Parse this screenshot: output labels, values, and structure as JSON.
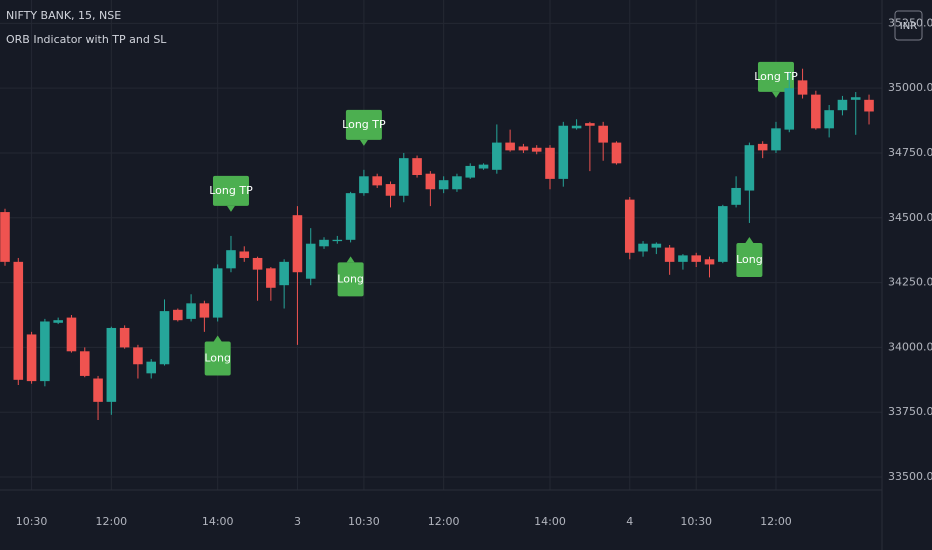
{
  "chart_data": {
    "type": "candlestick",
    "title": "NIFTY BANK, 15, NSE",
    "subtitle": "ORB Indicator with TP and SL",
    "currency": "INR",
    "up_color": "#26a69a",
    "down_color": "#ef5350",
    "signal_color": "#4caf50",
    "grid": true,
    "categories": [
      null,
      null,
      "10:30",
      null,
      null,
      null,
      null,
      null,
      "12:00",
      null,
      null,
      null,
      null,
      null,
      null,
      null,
      "14:00",
      null,
      null,
      null,
      null,
      null,
      "3",
      null,
      null,
      null,
      null,
      "10:30",
      null,
      null,
      null,
      null,
      null,
      "12:00",
      null,
      null,
      null,
      null,
      null,
      null,
      null,
      "14:00",
      null,
      null,
      null,
      null,
      null,
      "4",
      null,
      null,
      null,
      null,
      "10:30",
      null,
      null,
      null,
      null,
      null,
      "12:00",
      null,
      null,
      null,
      null,
      null,
      null,
      null
    ],
    "open": [
      34522,
      34330,
      34050,
      33870,
      34095,
      34115,
      33985,
      33880,
      33790,
      34075,
      34000,
      33900,
      33935,
      34145,
      34110,
      34170,
      34115,
      34305,
      34370,
      34345,
      34305,
      34240,
      34510,
      34265,
      34390,
      34410,
      34415,
      34595,
      34660,
      34630,
      34585,
      34730,
      34670,
      34610,
      34610,
      34655,
      34690,
      34685,
      34790,
      34775,
      34770,
      34770,
      34650,
      34845,
      34865,
      34855,
      34790,
      34570,
      34370,
      34385,
      34385,
      34330,
      34355,
      34340,
      34330,
      34550,
      34605,
      34785,
      34760,
      34840,
      35030,
      34975,
      34845,
      34915,
      34955,
      34955
    ],
    "high": [
      34535,
      34345,
      34060,
      34110,
      34115,
      34125,
      34000,
      33890,
      34080,
      34085,
      34010,
      33955,
      34185,
      34150,
      34205,
      34180,
      34320,
      34430,
      34390,
      34350,
      34310,
      34340,
      34545,
      34460,
      34425,
      34430,
      34600,
      34685,
      34670,
      34640,
      34750,
      34740,
      34680,
      34660,
      34670,
      34710,
      34710,
      34860,
      34840,
      34785,
      34780,
      34780,
      34870,
      34880,
      34870,
      34870,
      34795,
      34580,
      34410,
      34405,
      34395,
      34360,
      34365,
      34350,
      34550,
      34660,
      34790,
      34795,
      34870,
      35060,
      35075,
      34990,
      34935,
      34970,
      34985,
      34975
    ],
    "low": [
      34315,
      33855,
      33860,
      33850,
      34090,
      33980,
      33885,
      33720,
      33740,
      33995,
      33880,
      33880,
      33930,
      34100,
      34100,
      34060,
      34100,
      34290,
      34330,
      34180,
      34180,
      34150,
      34010,
      34240,
      34380,
      34400,
      34405,
      34585,
      34615,
      34540,
      34560,
      34655,
      34545,
      34595,
      34600,
      34650,
      34685,
      34670,
      34755,
      34750,
      34745,
      34610,
      34620,
      34840,
      34680,
      34720,
      34705,
      34340,
      34350,
      34360,
      34280,
      34300,
      34310,
      34270,
      34325,
      34540,
      34480,
      34730,
      34750,
      34830,
      34960,
      34840,
      34810,
      34895,
      34820,
      34860
    ],
    "close": [
      34330,
      33875,
      33870,
      34100,
      34105,
      33985,
      33890,
      33790,
      34075,
      34000,
      33935,
      33945,
      34140,
      34105,
      34170,
      34115,
      34305,
      34375,
      34345,
      34300,
      34230,
      34330,
      34290,
      34400,
      34415,
      34415,
      34595,
      34660,
      34625,
      34585,
      34730,
      34665,
      34610,
      34645,
      34660,
      34700,
      34705,
      34790,
      34760,
      34760,
      34755,
      34650,
      34855,
      34855,
      34855,
      34790,
      34710,
      34365,
      34400,
      34400,
      34330,
      34355,
      34330,
      34320,
      34545,
      34615,
      34780,
      34760,
      34845,
      35000,
      34975,
      34845,
      34915,
      34955,
      34965,
      34910
    ],
    "signals": [
      null,
      null,
      null,
      null,
      null,
      null,
      null,
      null,
      null,
      null,
      null,
      null,
      null,
      null,
      null,
      null,
      "Long",
      "Long TP",
      null,
      null,
      null,
      null,
      null,
      null,
      null,
      null,
      "Long",
      "Long TP",
      null,
      null,
      null,
      null,
      null,
      null,
      null,
      null,
      null,
      null,
      null,
      null,
      null,
      null,
      null,
      null,
      null,
      null,
      null,
      null,
      null,
      null,
      null,
      null,
      null,
      null,
      null,
      null,
      "Long",
      null,
      "Long TP",
      null,
      null,
      null,
      null,
      null,
      null,
      null
    ],
    "ylim": [
      33450,
      35340
    ],
    "yticks": [
      {
        "value": 33500,
        "label": "33500.00"
      },
      {
        "value": 33750,
        "label": "33750.00"
      },
      {
        "value": 34000,
        "label": "34000.00"
      },
      {
        "value": 34250,
        "label": "34250.00"
      },
      {
        "value": 34500,
        "label": "34500.00"
      },
      {
        "value": 34750,
        "label": "34750.00"
      },
      {
        "value": 35000,
        "label": "35000.00"
      },
      {
        "value": 35250,
        "label": "35250.00"
      }
    ]
  }
}
